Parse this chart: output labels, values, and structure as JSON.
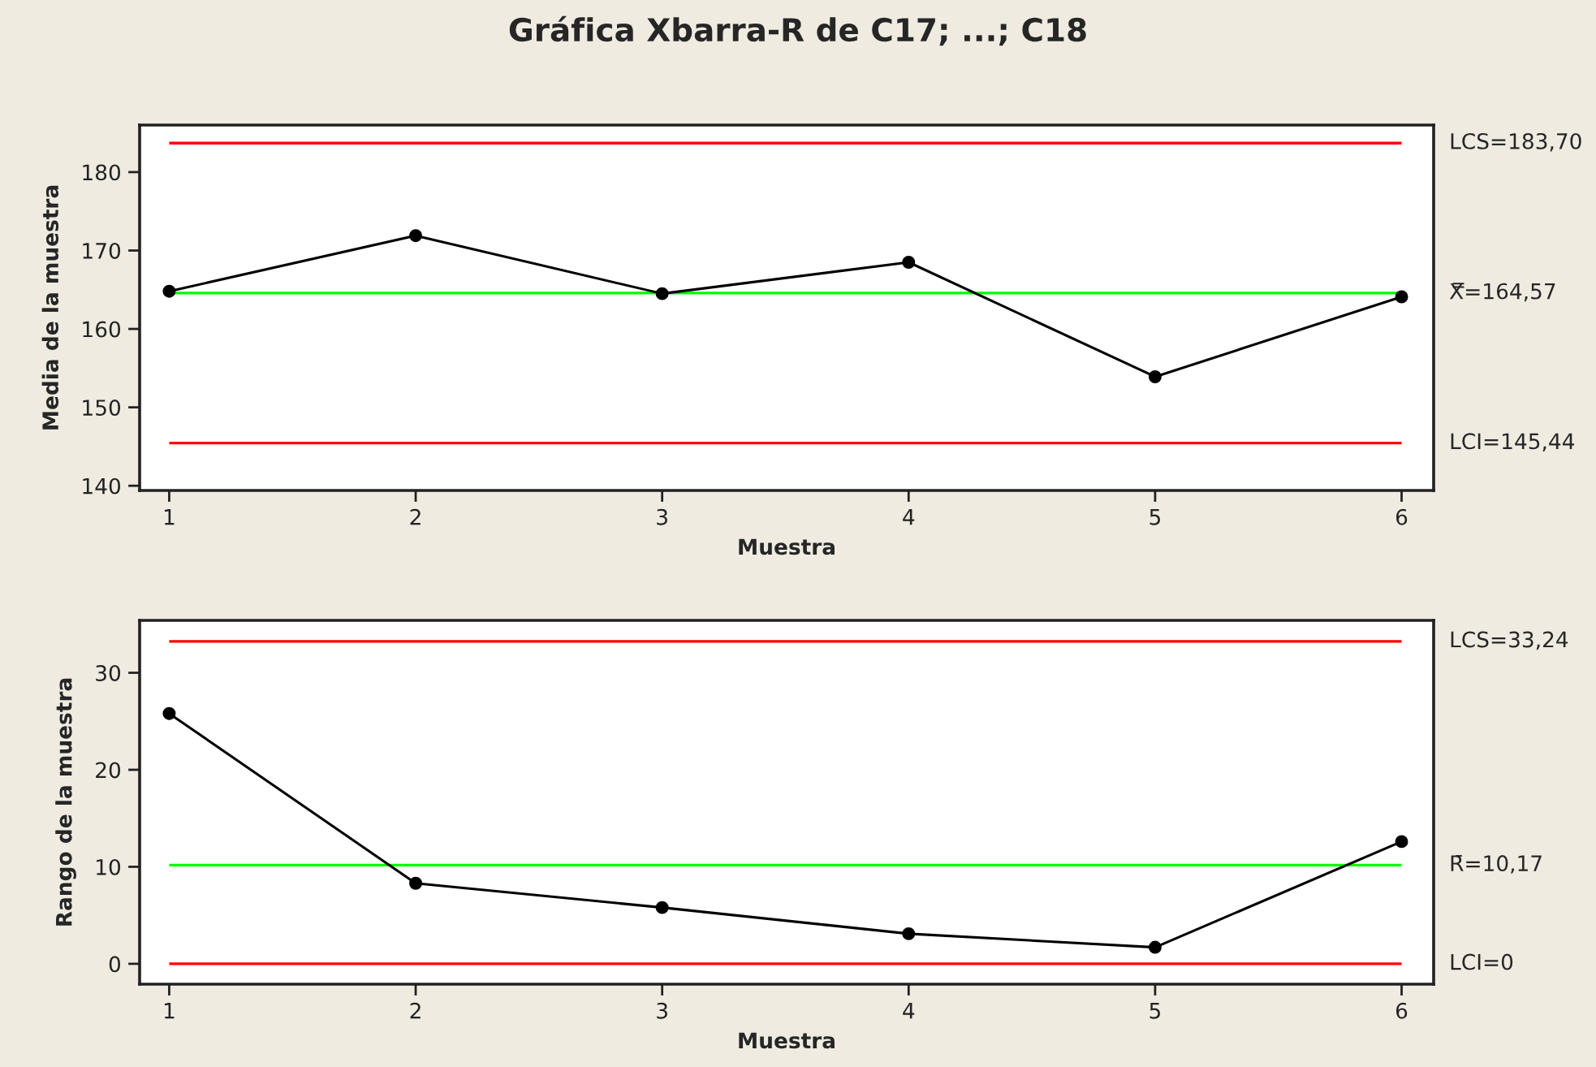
{
  "chart_data": [
    {
      "type": "line",
      "title": "Gráfica Xbarra-R de C17; ...; C18",
      "xlabel": "Muestra",
      "ylabel": "Media de la muestra",
      "x": [
        1,
        2,
        3,
        4,
        5,
        6
      ],
      "xlim": [
        0.88,
        6.13
      ],
      "xticks": [
        1,
        2,
        3,
        4,
        5,
        6
      ],
      "ylim": [
        139.4,
        186.0
      ],
      "yticks": [
        140,
        150,
        160,
        170,
        180
      ],
      "marker": "circle",
      "line_style": "solid",
      "grid": false,
      "series": [
        {
          "color": "#000000",
          "values": [
            164.8,
            171.9,
            164.5,
            168.5,
            153.9,
            164.1
          ]
        }
      ],
      "ref_lines": [
        {
          "axis": "y",
          "value": 183.7,
          "label": "LCS=183,70",
          "color": "#ff0000"
        },
        {
          "axis": "y",
          "value": 164.57,
          "label": "X̿=164,57",
          "color": "#00ff00"
        },
        {
          "axis": "y",
          "value": 145.44,
          "label": "LCI=145,44",
          "color": "#ff0000"
        }
      ]
    },
    {
      "type": "line",
      "xlabel": "Muestra",
      "ylabel": "Rango de la muestra",
      "x": [
        1,
        2,
        3,
        4,
        5,
        6
      ],
      "xlim": [
        0.88,
        6.13
      ],
      "xticks": [
        1,
        2,
        3,
        4,
        5,
        6
      ],
      "ylim": [
        -2.1,
        35.4
      ],
      "yticks": [
        0,
        10,
        20,
        30
      ],
      "marker": "circle",
      "line_style": "solid",
      "grid": false,
      "series": [
        {
          "color": "#000000",
          "values": [
            25.8,
            8.3,
            5.8,
            3.1,
            1.7,
            12.6
          ]
        }
      ],
      "ref_lines": [
        {
          "axis": "y",
          "value": 33.24,
          "label": "LCS=33,24",
          "color": "#ff0000"
        },
        {
          "axis": "y",
          "value": 10.17,
          "label": "R̄=10,17",
          "color": "#00ff00"
        },
        {
          "axis": "y",
          "value": 0,
          "label": "LCI=0",
          "color": "#ff0000"
        }
      ]
    }
  ]
}
